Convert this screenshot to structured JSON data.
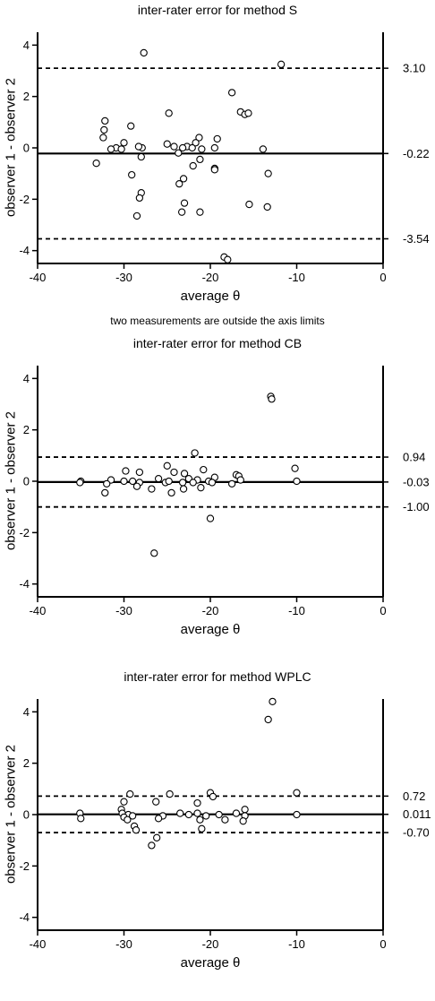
{
  "chart_data": [
    {
      "type": "scatter",
      "title": "inter-rater error for method S",
      "xlabel": "average θ",
      "ylabel": "observer 1 - observer 2",
      "xlim": [
        -40,
        0
      ],
      "ylim": [
        -4.5,
        4.5
      ],
      "xticks": [
        -40,
        -30,
        -20,
        -10,
        0
      ],
      "yticks": [
        -4,
        -2,
        0,
        2,
        4
      ],
      "grid": false,
      "note": "two measurements are outside the axis limits",
      "lines": [
        {
          "label": "3.10",
          "y": 3.1,
          "style": "dashed"
        },
        {
          "label": "-0.22",
          "y": -0.22,
          "style": "solid"
        },
        {
          "label": "-3.54",
          "y": -3.54,
          "style": "dashed"
        }
      ],
      "points": [
        {
          "x": -27.7,
          "y": 3.7
        },
        {
          "x": -11.8,
          "y": 3.25
        },
        {
          "x": -17.5,
          "y": 2.15
        },
        {
          "x": -24.8,
          "y": 1.35
        },
        {
          "x": -16.5,
          "y": 1.4
        },
        {
          "x": -16.0,
          "y": 1.3
        },
        {
          "x": -15.6,
          "y": 1.35
        },
        {
          "x": -32.2,
          "y": 1.05
        },
        {
          "x": -32.3,
          "y": 0.7
        },
        {
          "x": -29.2,
          "y": 0.85
        },
        {
          "x": -32.4,
          "y": 0.4
        },
        {
          "x": -21.3,
          "y": 0.4
        },
        {
          "x": -19.2,
          "y": 0.35
        },
        {
          "x": -21.7,
          "y": 0.2
        },
        {
          "x": -30.0,
          "y": 0.2
        },
        {
          "x": -27.9,
          "y": 0.0
        },
        {
          "x": -25.0,
          "y": 0.15
        },
        {
          "x": -28.3,
          "y": 0.05
        },
        {
          "x": -30.9,
          "y": 0.0
        },
        {
          "x": -31.5,
          "y": -0.05
        },
        {
          "x": -30.3,
          "y": -0.05
        },
        {
          "x": -24.2,
          "y": 0.05
        },
        {
          "x": -22.7,
          "y": 0.05
        },
        {
          "x": -22.1,
          "y": 0.0
        },
        {
          "x": -19.5,
          "y": 0.0
        },
        {
          "x": -23.2,
          "y": 0.0
        },
        {
          "x": -21.0,
          "y": -0.05
        },
        {
          "x": -23.7,
          "y": -0.2
        },
        {
          "x": -13.9,
          "y": -0.05
        },
        {
          "x": -28.0,
          "y": -0.35
        },
        {
          "x": -21.2,
          "y": -0.45
        },
        {
          "x": -33.2,
          "y": -0.6
        },
        {
          "x": -22.0,
          "y": -0.7
        },
        {
          "x": -19.5,
          "y": -0.8
        },
        {
          "x": -19.5,
          "y": -0.85
        },
        {
          "x": -13.3,
          "y": -1.0
        },
        {
          "x": -29.1,
          "y": -1.05
        },
        {
          "x": -23.1,
          "y": -1.2
        },
        {
          "x": -23.6,
          "y": -1.4
        },
        {
          "x": -28.0,
          "y": -1.75
        },
        {
          "x": -28.2,
          "y": -1.95
        },
        {
          "x": -23.0,
          "y": -2.15
        },
        {
          "x": -15.5,
          "y": -2.2
        },
        {
          "x": -13.4,
          "y": -2.3
        },
        {
          "x": -23.3,
          "y": -2.5
        },
        {
          "x": -21.2,
          "y": -2.5
        },
        {
          "x": -28.5,
          "y": -2.65
        },
        {
          "x": -18.4,
          "y": -4.25
        },
        {
          "x": -18.0,
          "y": -4.35
        }
      ]
    },
    {
      "type": "scatter",
      "title": "inter-rater error for method CB",
      "xlabel": "average θ",
      "ylabel": "observer 1 - observer 2",
      "xlim": [
        -40,
        0
      ],
      "ylim": [
        -4.5,
        4.5
      ],
      "xticks": [
        -40,
        -30,
        -20,
        -10,
        0
      ],
      "yticks": [
        -4,
        -2,
        0,
        2,
        4
      ],
      "grid": false,
      "lines": [
        {
          "label": "0.94",
          "y": 0.94,
          "style": "dashed"
        },
        {
          "label": "-0.03",
          "y": -0.03,
          "style": "solid"
        },
        {
          "label": "-1.00",
          "y": -1.0,
          "style": "dashed"
        }
      ],
      "points": [
        {
          "x": -13.0,
          "y": 3.3
        },
        {
          "x": -12.9,
          "y": 3.2
        },
        {
          "x": -21.8,
          "y": 1.1
        },
        {
          "x": -25.0,
          "y": 0.6
        },
        {
          "x": -10.2,
          "y": 0.5
        },
        {
          "x": -20.8,
          "y": 0.45
        },
        {
          "x": -29.8,
          "y": 0.4
        },
        {
          "x": -28.2,
          "y": 0.35
        },
        {
          "x": -24.2,
          "y": 0.35
        },
        {
          "x": -23.0,
          "y": 0.3
        },
        {
          "x": -17.0,
          "y": 0.25
        },
        {
          "x": -16.7,
          "y": 0.2
        },
        {
          "x": -19.5,
          "y": 0.15
        },
        {
          "x": -22.5,
          "y": 0.1
        },
        {
          "x": -21.5,
          "y": 0.05
        },
        {
          "x": -26.0,
          "y": 0.1
        },
        {
          "x": -31.5,
          "y": 0.05
        },
        {
          "x": -35.0,
          "y": 0.0
        },
        {
          "x": -35.1,
          "y": -0.05
        },
        {
          "x": -32.0,
          "y": -0.1
        },
        {
          "x": -30.0,
          "y": 0.0
        },
        {
          "x": -29.0,
          "y": 0.0
        },
        {
          "x": -28.2,
          "y": -0.05
        },
        {
          "x": -25.2,
          "y": -0.05
        },
        {
          "x": -24.8,
          "y": 0.0
        },
        {
          "x": -23.2,
          "y": -0.05
        },
        {
          "x": -22.0,
          "y": -0.05
        },
        {
          "x": -20.2,
          "y": 0.0
        },
        {
          "x": -19.8,
          "y": -0.05
        },
        {
          "x": -17.5,
          "y": -0.1
        },
        {
          "x": -16.5,
          "y": 0.05
        },
        {
          "x": -10.0,
          "y": 0.0
        },
        {
          "x": -26.8,
          "y": -0.3
        },
        {
          "x": -28.5,
          "y": -0.2
        },
        {
          "x": -23.1,
          "y": -0.3
        },
        {
          "x": -21.1,
          "y": -0.25
        },
        {
          "x": -32.2,
          "y": -0.45
        },
        {
          "x": -24.5,
          "y": -0.45
        },
        {
          "x": -20.0,
          "y": -1.45
        },
        {
          "x": -26.5,
          "y": -2.8
        }
      ]
    },
    {
      "type": "scatter",
      "title": "inter-rater error for method WPLC",
      "xlabel": "average θ",
      "ylabel": "observer 1 - observer 2",
      "xlim": [
        -40,
        0
      ],
      "ylim": [
        -4.5,
        4.5
      ],
      "xticks": [
        -40,
        -30,
        -20,
        -10,
        0
      ],
      "yticks": [
        -4,
        -2,
        0,
        2,
        4
      ],
      "grid": false,
      "lines": [
        {
          "label": "0.72",
          "y": 0.72,
          "style": "dashed"
        },
        {
          "label": "0.011",
          "y": 0.011,
          "style": "solid"
        },
        {
          "label": "-0.70",
          "y": -0.7,
          "style": "dashed"
        }
      ],
      "points": [
        {
          "x": -12.8,
          "y": 4.4
        },
        {
          "x": -13.3,
          "y": 3.7
        },
        {
          "x": -29.3,
          "y": 0.8
        },
        {
          "x": -24.7,
          "y": 0.8
        },
        {
          "x": -20.0,
          "y": 0.85
        },
        {
          "x": -10.0,
          "y": 0.85
        },
        {
          "x": -19.7,
          "y": 0.7
        },
        {
          "x": -30.0,
          "y": 0.5
        },
        {
          "x": -26.3,
          "y": 0.5
        },
        {
          "x": -21.5,
          "y": 0.45
        },
        {
          "x": -30.3,
          "y": 0.2
        },
        {
          "x": -16.0,
          "y": 0.2
        },
        {
          "x": -35.1,
          "y": 0.05
        },
        {
          "x": -30.2,
          "y": 0.05
        },
        {
          "x": -29.5,
          "y": 0.0
        },
        {
          "x": -29.0,
          "y": -0.05
        },
        {
          "x": -25.5,
          "y": -0.05
        },
        {
          "x": -23.5,
          "y": 0.05
        },
        {
          "x": -22.5,
          "y": 0.0
        },
        {
          "x": -21.5,
          "y": 0.05
        },
        {
          "x": -20.5,
          "y": -0.05
        },
        {
          "x": -19.0,
          "y": 0.0
        },
        {
          "x": -17.0,
          "y": 0.05
        },
        {
          "x": -16.0,
          "y": -0.05
        },
        {
          "x": -10.0,
          "y": 0.0
        },
        {
          "x": -35.0,
          "y": -0.15
        },
        {
          "x": -30.0,
          "y": -0.1
        },
        {
          "x": -29.6,
          "y": -0.2
        },
        {
          "x": -26.0,
          "y": -0.15
        },
        {
          "x": -21.2,
          "y": -0.2
        },
        {
          "x": -18.3,
          "y": -0.2
        },
        {
          "x": -16.2,
          "y": -0.25
        },
        {
          "x": -28.8,
          "y": -0.45
        },
        {
          "x": -28.6,
          "y": -0.6
        },
        {
          "x": -21.0,
          "y": -0.55
        },
        {
          "x": -26.2,
          "y": -0.9
        },
        {
          "x": -26.8,
          "y": -1.2
        }
      ]
    }
  ]
}
